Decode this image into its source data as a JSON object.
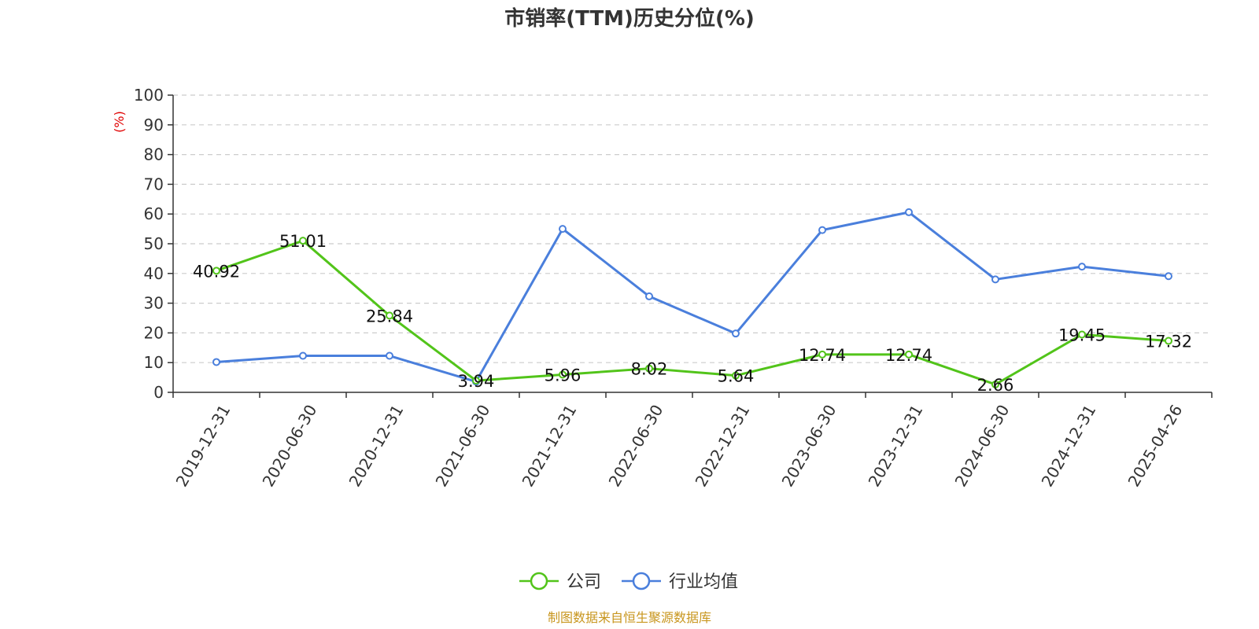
{
  "chart_data": {
    "type": "line",
    "title": "市销率(TTM)历史分位(%)",
    "ylabel": "(%)",
    "ylim": [
      0,
      100
    ],
    "yticks": [
      0,
      10,
      20,
      30,
      40,
      50,
      60,
      70,
      80,
      90,
      100
    ],
    "grid": true,
    "legend_position": "bottom-center",
    "categories": [
      "2019-12-31",
      "2020-06-30",
      "2020-12-31",
      "2021-06-30",
      "2021-12-31",
      "2022-06-30",
      "2022-12-31",
      "2023-06-30",
      "2023-12-31",
      "2024-06-30",
      "2024-12-31",
      "2025-04-26"
    ],
    "series": [
      {
        "name": "公司",
        "color": "#52c41a",
        "show_labels": true,
        "values": [
          40.92,
          51.01,
          25.84,
          3.94,
          5.96,
          8.02,
          5.64,
          12.74,
          12.74,
          2.66,
          19.45,
          17.32
        ]
      },
      {
        "name": "行业均值",
        "color": "#4a7fdc",
        "show_labels": false,
        "values": [
          10.2,
          12.3,
          12.3,
          3.6,
          55.0,
          32.3,
          19.8,
          54.6,
          60.6,
          38.0,
          42.3,
          39.1
        ]
      }
    ]
  },
  "footer": {
    "source": "制图数据来自恒生聚源数据库"
  }
}
